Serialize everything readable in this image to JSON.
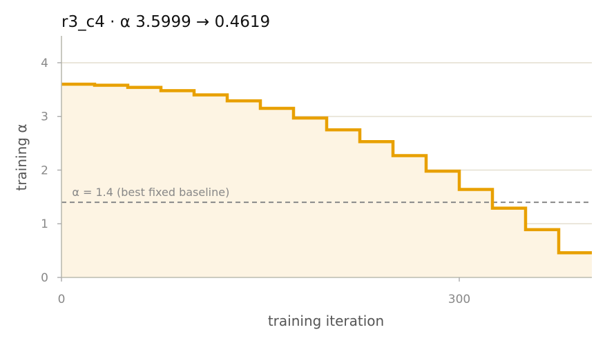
{
  "chart_data": {
    "type": "line",
    "step": true,
    "title": "r3_c4   ·   α 3.5999 → 0.4619",
    "xlabel": "training iteration",
    "ylabel": "training α",
    "xlim": [
      0,
      400
    ],
    "ylim": [
      0,
      4.5
    ],
    "xticks": [
      0,
      300
    ],
    "yticks": [
      0,
      1,
      2,
      3,
      4
    ],
    "grid": "horizontal",
    "series": [
      {
        "color": "#E8A000",
        "fill": "#FDF4E3",
        "x": [
          0,
          25,
          50,
          75,
          100,
          125,
          150,
          175,
          200,
          225,
          250,
          275,
          300,
          325,
          350,
          375,
          400
        ],
        "y": [
          3.6,
          3.58,
          3.54,
          3.48,
          3.4,
          3.29,
          3.15,
          2.97,
          2.75,
          2.53,
          2.27,
          1.98,
          1.64,
          1.29,
          0.89,
          0.46,
          0.46
        ]
      }
    ],
    "reference_line": {
      "y": 1.4,
      "label": "α = 1.4 (best fixed baseline)",
      "color": "#888888",
      "style": "dashed"
    }
  }
}
